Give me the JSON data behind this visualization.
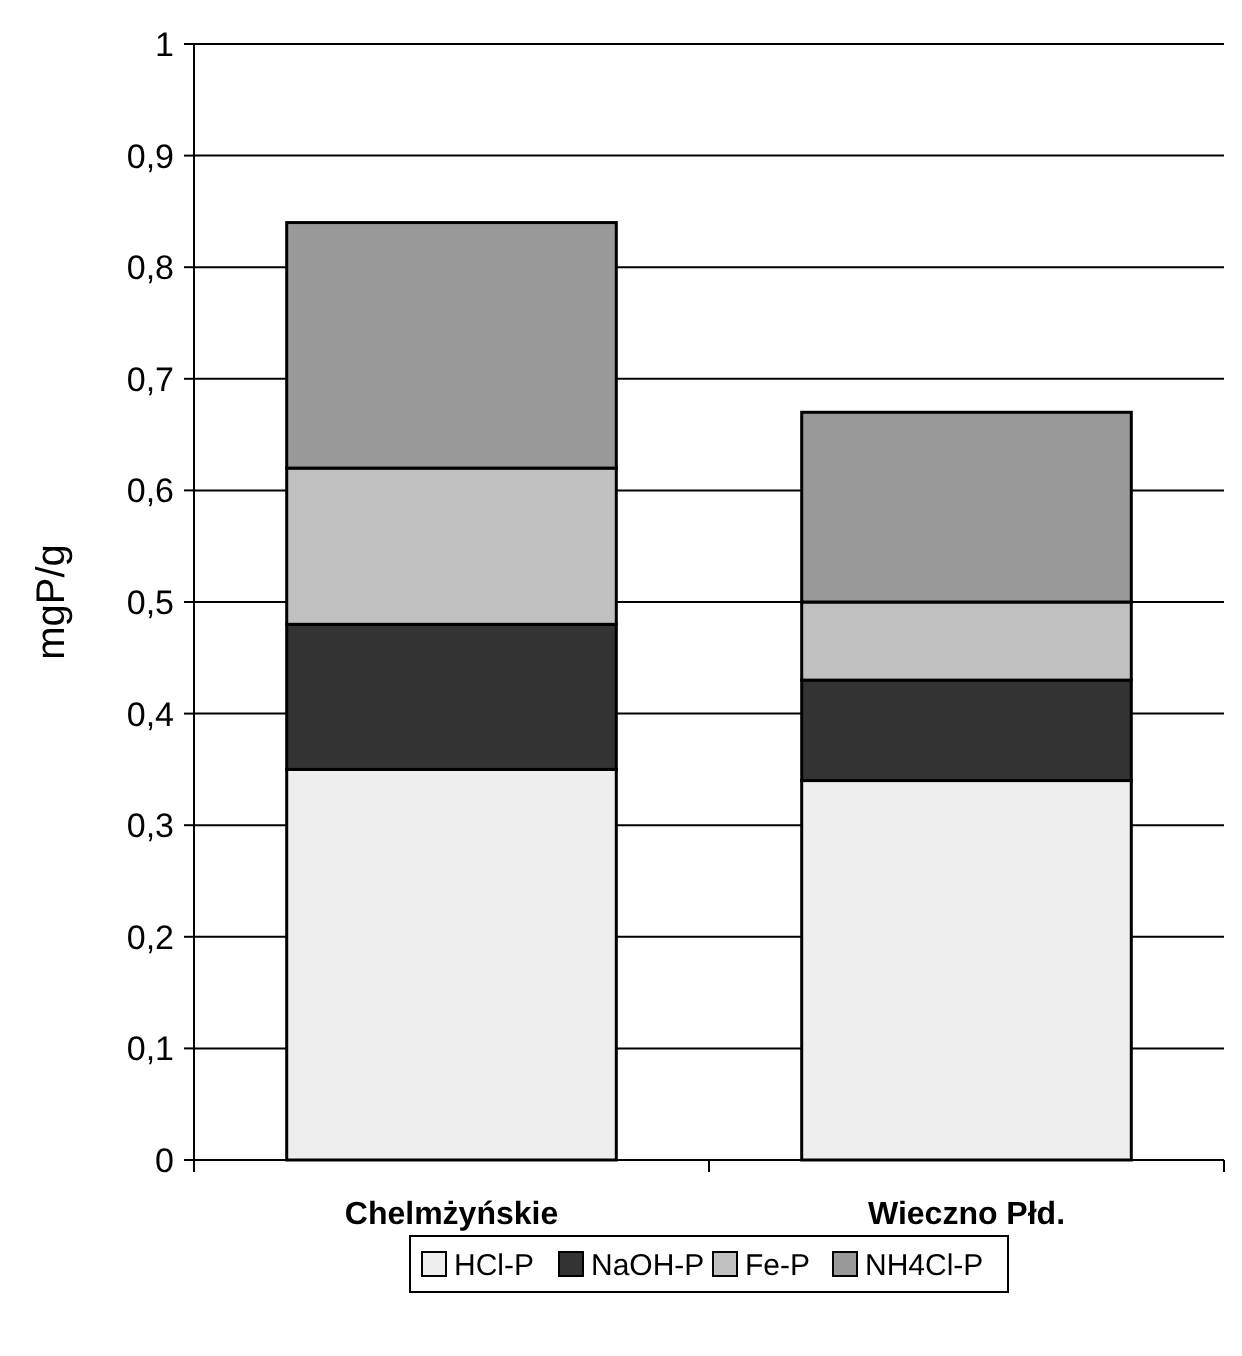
{
  "chart_data": {
    "type": "bar",
    "stacked": true,
    "ylabel": "mgP/g",
    "categories": [
      "Chelmżyńskie",
      "Wieczno Płd."
    ],
    "series": [
      {
        "name": "HCl-P",
        "color": "#eeeeee",
        "values": [
          0.35,
          0.34
        ]
      },
      {
        "name": "NaOH-P",
        "color": "#333333",
        "values": [
          0.13,
          0.09
        ]
      },
      {
        "name": "Fe-P",
        "color": "#c0c0c0",
        "values": [
          0.14,
          0.07
        ]
      },
      {
        "name": "NH4Cl-P",
        "color": "#999999",
        "values": [
          0.22,
          0.17
        ]
      }
    ],
    "ylim": [
      0,
      1
    ],
    "yticks": [
      {
        "value": 0,
        "label": "0"
      },
      {
        "value": 0.1,
        "label": "0,1"
      },
      {
        "value": 0.2,
        "label": "0,2"
      },
      {
        "value": 0.3,
        "label": "0,3"
      },
      {
        "value": 0.4,
        "label": "0,4"
      },
      {
        "value": 0.5,
        "label": "0,5"
      },
      {
        "value": 0.6,
        "label": "0,6"
      },
      {
        "value": 0.7,
        "label": "0,7"
      },
      {
        "value": 0.8,
        "label": "0,8"
      },
      {
        "value": 0.9,
        "label": "0,9"
      },
      {
        "value": 1,
        "label": "1"
      }
    ],
    "grid": "y",
    "legend": "bottom"
  }
}
